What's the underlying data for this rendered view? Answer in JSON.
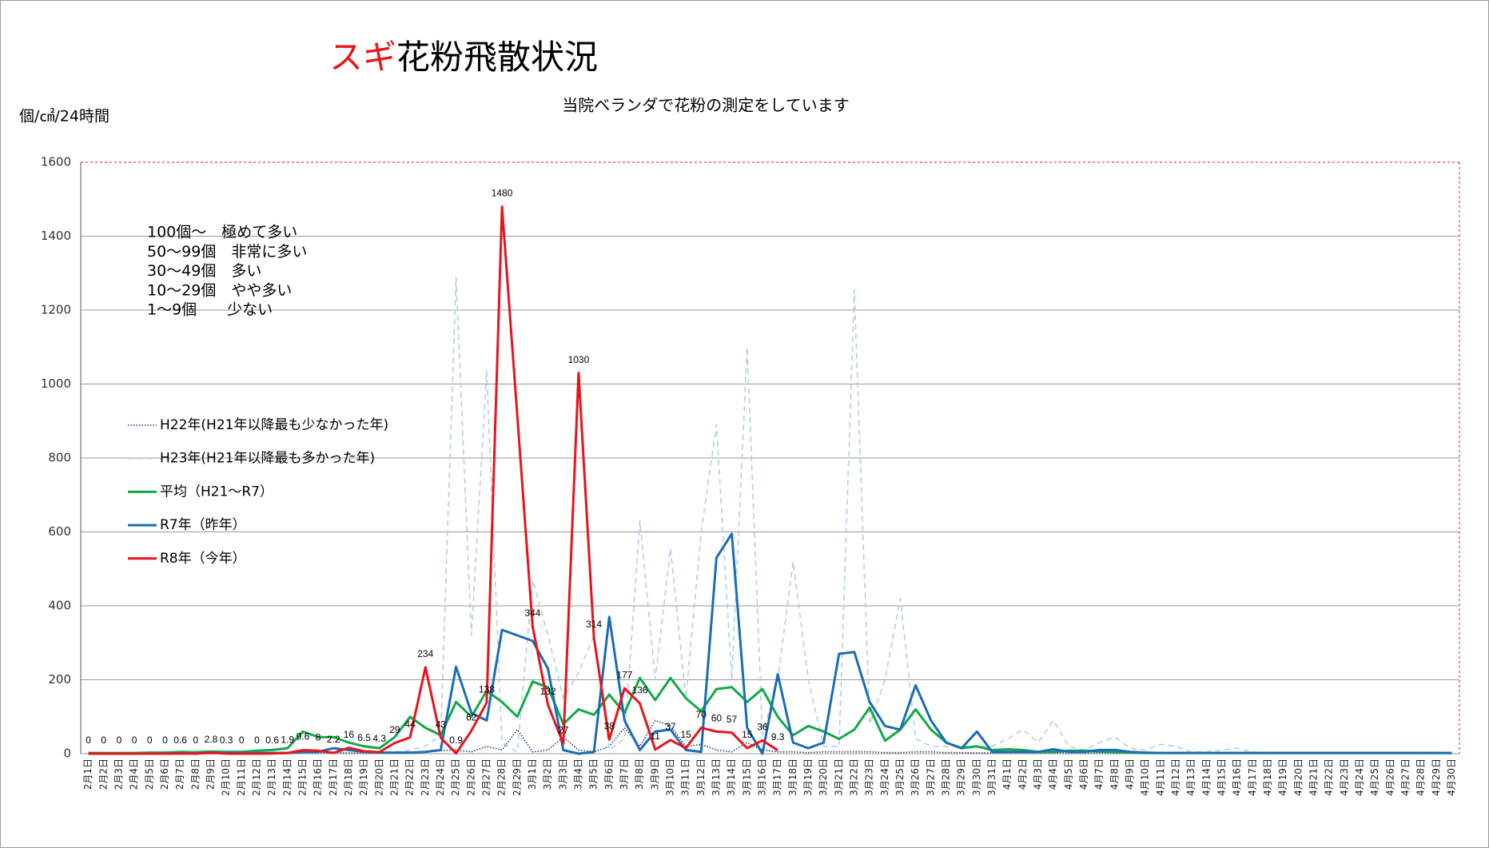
{
  "chart_data": {
    "type": "line",
    "title_parts": [
      {
        "text": "スギ",
        "color": "#e8141c"
      },
      {
        "text": "花粉飛散状況",
        "color": "#000000"
      }
    ],
    "subtitle": "当院ベランダで花粉の測定をしています",
    "y_label": "個/㎠/24時間",
    "annotations": [
      "100個～　極めて多い",
      "50～99個　非常に多い",
      "30～49個　多い",
      "10～29個　やや多い",
      "1～9個　　少ない"
    ],
    "categories": [
      "2月1日",
      "2月2日",
      "2月3日",
      "2月4日",
      "2月5日",
      "2月6日",
      "2月7日",
      "2月8日",
      "2月9日",
      "2月10日",
      "2月11日",
      "2月12日",
      "2月13日",
      "2月14日",
      "2月15日",
      "2月16日",
      "2月17日",
      "2月18日",
      "2月19日",
      "2月20日",
      "2月21日",
      "2月22日",
      "2月23日",
      "2月24日",
      "2月25日",
      "2月26日",
      "2月27日",
      "2月28日",
      "2月29日",
      "3月1日",
      "3月2日",
      "3月3日",
      "3月4日",
      "3月5日",
      "3月6日",
      "3月7日",
      "3月8日",
      "3月9日",
      "3月10日",
      "3月11日",
      "3月12日",
      "3月13日",
      "3月14日",
      "3月15日",
      "3月16日",
      "3月17日",
      "3月18日",
      "3月19日",
      "3月20日",
      "3月21日",
      "3月22日",
      "3月23日",
      "3月24日",
      "3月25日",
      "3月26日",
      "3月27日",
      "3月28日",
      "3月29日",
      "3月30日",
      "3月31日",
      "4月1日",
      "4月2日",
      "4月3日",
      "4月4日",
      "4月5日",
      "4月6日",
      "4月7日",
      "4月8日",
      "4月9日",
      "4月10日",
      "4月11日",
      "4月12日",
      "4月13日",
      "4月14日",
      "4月15日",
      "4月16日",
      "4月17日",
      "4月18日",
      "4月19日",
      "4月20日",
      "4月21日",
      "4月22日",
      "4月23日",
      "4月24日",
      "4月25日",
      "4月26日",
      "4月27日",
      "4月28日",
      "4月29日",
      "4月30日"
    ],
    "series": [
      {
        "name": "H22年(H21年以降最も少なかった年)",
        "color": "#1f3f7a",
        "style": "dotted",
        "values": [
          0,
          0,
          0,
          0,
          0,
          0,
          0,
          0,
          0,
          0,
          0,
          0,
          0,
          1,
          2,
          2,
          3,
          2,
          2,
          2,
          3,
          3,
          5,
          8,
          10,
          5,
          20,
          10,
          65,
          5,
          10,
          45,
          10,
          5,
          20,
          70,
          20,
          90,
          75,
          20,
          25,
          10,
          5,
          30,
          10,
          5,
          5,
          3,
          5,
          5,
          5,
          5,
          3,
          3,
          5,
          5,
          3,
          3,
          2,
          2,
          2,
          2,
          2,
          2,
          2,
          2,
          2,
          1,
          1,
          1,
          1,
          1,
          1,
          1,
          1,
          1,
          1,
          1,
          1,
          1,
          1,
          1,
          1,
          1,
          1,
          1,
          1,
          1,
          1,
          1
        ]
      },
      {
        "name": "H23年(H21年以降最も多かった年)",
        "color": "#b8cce4",
        "style": "dashed",
        "values": [
          0,
          0,
          0,
          0,
          0,
          1,
          1,
          1,
          2,
          2,
          2,
          2,
          3,
          3,
          5,
          5,
          5,
          8,
          5,
          5,
          5,
          10,
          20,
          50,
          1290,
          320,
          1035,
          30,
          5,
          470,
          320,
          150,
          220,
          320,
          10,
          40,
          630,
          200,
          555,
          150,
          600,
          890,
          200,
          1100,
          50,
          200,
          520,
          200,
          20,
          20,
          1255,
          80,
          200,
          420,
          40,
          20,
          20,
          20,
          20,
          20,
          40,
          65,
          30,
          90,
          20,
          10,
          30,
          45,
          15,
          10,
          25,
          20,
          5,
          5,
          10,
          15,
          5,
          2,
          2,
          2,
          2,
          2,
          2,
          2,
          2,
          2,
          2,
          2,
          2,
          2
        ]
      },
      {
        "name": "平均（H21～R7）",
        "color": "#13a84a",
        "style": "solid",
        "values": [
          2,
          2,
          2,
          2,
          3,
          3,
          5,
          4,
          6,
          5,
          5,
          8,
          10,
          15,
          60,
          45,
          45,
          30,
          20,
          15,
          45,
          100,
          70,
          50,
          140,
          100,
          170,
          140,
          100,
          195,
          180,
          80,
          120,
          105,
          160,
          110,
          205,
          145,
          205,
          150,
          115,
          175,
          180,
          140,
          175,
          100,
          50,
          75,
          60,
          40,
          65,
          125,
          35,
          65,
          120,
          65,
          30,
          15,
          20,
          10,
          12,
          10,
          5,
          5,
          8,
          8,
          6,
          5,
          3,
          2,
          2,
          2,
          2,
          2,
          2,
          2,
          2,
          2,
          2,
          2,
          2,
          2,
          2,
          2,
          2,
          2,
          2,
          2,
          2,
          2
        ]
      },
      {
        "name": "R7年（昨年）",
        "color": "#1a6db5",
        "style": "solid",
        "values": [
          0,
          0,
          0,
          0,
          0,
          0,
          1,
          1,
          2,
          2,
          2,
          2,
          2,
          2,
          5,
          5,
          15,
          10,
          5,
          3,
          3,
          3,
          5,
          10,
          235,
          110,
          90,
          335,
          320,
          305,
          230,
          10,
          0,
          5,
          370,
          90,
          10,
          60,
          65,
          10,
          5,
          530,
          595,
          70,
          0,
          215,
          30,
          15,
          30,
          270,
          275,
          140,
          75,
          65,
          185,
          90,
          30,
          15,
          60,
          5,
          5,
          5,
          5,
          12,
          5,
          5,
          10,
          10,
          5,
          3,
          2,
          2,
          2,
          2,
          2,
          2,
          2,
          2,
          2,
          2,
          2,
          2,
          2,
          2,
          2,
          2,
          2,
          2,
          2,
          2
        ]
      },
      {
        "name": "R8年（今年）",
        "color": "#e8141c",
        "style": "solid",
        "values": [
          0,
          0,
          0,
          0,
          0,
          0,
          0.6,
          0,
          2.8,
          0.3,
          0,
          0,
          0.6,
          1.9,
          9.6,
          8,
          2.2,
          16,
          6.5,
          4.3,
          29,
          44,
          234,
          43,
          0.9,
          62,
          138,
          1480,
          912,
          344,
          132,
          27,
          1030,
          314,
          38,
          177,
          136,
          11,
          37,
          15,
          70,
          60,
          57,
          15,
          36,
          9.3,
          null,
          null,
          null,
          null,
          null,
          null,
          null,
          null,
          null,
          null,
          null,
          null,
          null,
          null,
          null,
          null,
          null,
          null,
          null,
          null,
          null,
          null,
          null,
          null,
          null,
          null,
          null,
          null,
          null,
          null,
          null,
          null,
          null,
          null,
          null,
          null,
          null,
          null,
          null,
          null,
          null,
          null,
          null,
          null
        ],
        "value_labels": [
          "0",
          "0",
          "0",
          "0",
          "0",
          "0",
          "0.6",
          "0",
          "2.8",
          "0.3",
          "0",
          "0",
          "0.6",
          "1.9",
          "9.6",
          "8",
          "2.2",
          "16",
          "6.5",
          "4.3",
          "29",
          "44",
          "234",
          "43",
          "0.9",
          "62",
          "138",
          "1480",
          null,
          "344",
          "132",
          "27",
          "1030",
          "314",
          "38",
          "177",
          "136",
          "11",
          "37",
          "15",
          "70",
          "60",
          "57",
          "15",
          "36",
          "9.3",
          null,
          null,
          null,
          null,
          null,
          null,
          null,
          null,
          null,
          null,
          null,
          null,
          null,
          null,
          null,
          null,
          null,
          null,
          null,
          null,
          null,
          null,
          null,
          null,
          null,
          null,
          null,
          null,
          null,
          null,
          null,
          null,
          null,
          null,
          null,
          null,
          null,
          null,
          null,
          null,
          null,
          null,
          null,
          null
        ]
      }
    ],
    "ylim": [
      0,
      1600
    ],
    "yticks": [
      0,
      200,
      400,
      600,
      800,
      1000,
      1200,
      1400,
      1600
    ],
    "grid": true,
    "legend": "left"
  }
}
